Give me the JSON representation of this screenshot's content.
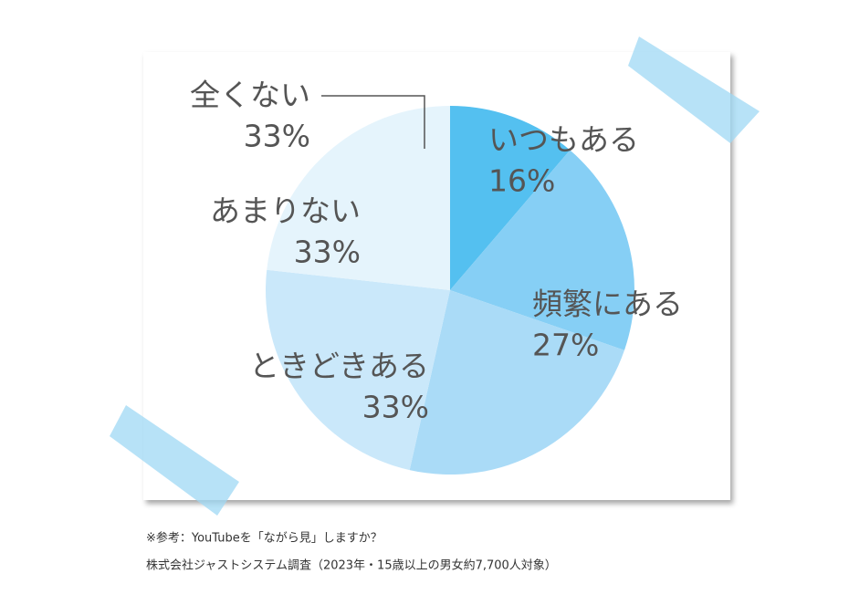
{
  "chart_data": {
    "type": "pie",
    "categories": [
      "いつもある",
      "頻繁にある",
      "ときどきある",
      "あまりない",
      "全くない"
    ],
    "values": [
      16,
      27,
      33,
      33,
      33
    ],
    "value_labels": [
      "16%",
      "27%",
      "33%",
      "33%",
      "33%"
    ],
    "colors": [
      "#54c0f0",
      "#86cff5",
      "#aadbf7",
      "#cae8fa",
      "#e5f4fc"
    ]
  },
  "notes": [
    "※参考：YouTubeを「ながら見」しますか？",
    "株式会社ジャストシステム調査（2023年・15歳以上の男女約7,700人対象）"
  ]
}
